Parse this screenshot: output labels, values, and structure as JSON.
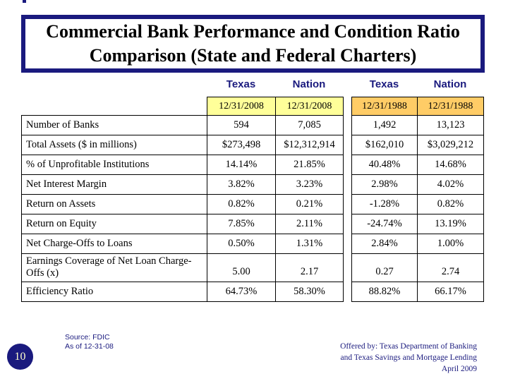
{
  "title": {
    "line1": "Commercial Bank Performance and Condition Ratio",
    "line2": "Comparison (State and Federal Charters)"
  },
  "table": {
    "group_headers": [
      "Texas",
      "Nation",
      "Texas",
      "Nation"
    ],
    "dates": [
      "12/31/2008",
      "12/31/2008",
      "12/31/1988",
      "12/31/1988"
    ],
    "rows": [
      {
        "label": "Number of Banks",
        "values": [
          "594",
          "7,085",
          "1,492",
          "13,123"
        ]
      },
      {
        "label": "Total Assets ($ in millions)",
        "values": [
          "$273,498",
          "$12,312,914",
          "$162,010",
          "$3,029,212"
        ]
      },
      {
        "label": "% of Unprofitable Institutions",
        "values": [
          "14.14%",
          "21.85%",
          "40.48%",
          "14.68%"
        ]
      },
      {
        "label": "Net Interest Margin",
        "values": [
          "3.82%",
          "3.23%",
          "2.98%",
          "4.02%"
        ]
      },
      {
        "label": "Return on Assets",
        "values": [
          "0.82%",
          "0.21%",
          "-1.28%",
          "0.82%"
        ]
      },
      {
        "label": "Return on Equity",
        "values": [
          "7.85%",
          "2.11%",
          "-24.74%",
          "13.19%"
        ]
      },
      {
        "label": "Net Charge-Offs to Loans",
        "values": [
          "0.50%",
          "1.31%",
          "2.84%",
          "1.00%"
        ]
      },
      {
        "label": "Earnings Coverage of Net Loan Charge-Offs (x)",
        "values": [
          "5.00",
          "2.17",
          "0.27",
          "2.74"
        ],
        "tall": true
      },
      {
        "label": "Efficiency Ratio",
        "values": [
          "64.73%",
          "58.30%",
          "88.82%",
          "66.17%"
        ]
      }
    ]
  },
  "footer": {
    "page_number": "10",
    "source_line1": "Source: FDIC",
    "source_line2": "As of 12-31-08",
    "credit_line1": "Offered by: Texas Department of Banking",
    "credit_line2": "and Texas Savings and Mortgage Lending",
    "credit_line3": "April 2009"
  },
  "colors": {
    "navy": "#1A1A7E",
    "date_2008_bg": "#FFFF99",
    "date_1988_bg": "#FFCC66",
    "border_black": "#000000"
  }
}
